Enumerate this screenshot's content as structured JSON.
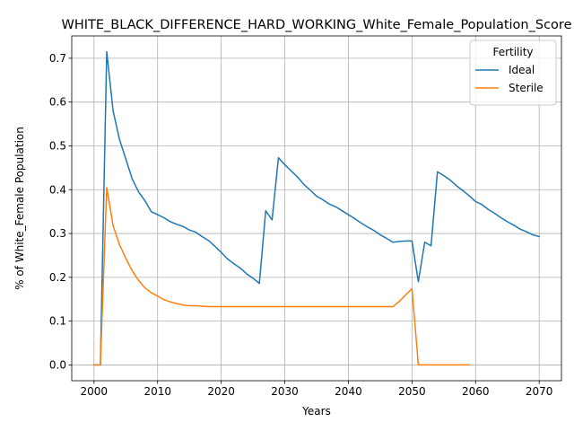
{
  "chart_data": {
    "type": "line",
    "title": "WHITE_BLACK_DIFFERENCE_HARD_WORKING_White_Female_Population_Score",
    "xlabel": "Years",
    "ylabel": "% of White_Female Population",
    "xlim": [
      1996.5,
      2073.5
    ],
    "ylim": [
      -0.036,
      0.751
    ],
    "xticks": [
      2000,
      2010,
      2020,
      2030,
      2040,
      2050,
      2060,
      2070
    ],
    "yticks": [
      0.0,
      0.1,
      0.2,
      0.3,
      0.4,
      0.5,
      0.6,
      0.7
    ],
    "ytick_labels": [
      "0.0",
      "0.1",
      "0.2",
      "0.3",
      "0.4",
      "0.5",
      "0.6",
      "0.7"
    ],
    "grid": true,
    "legend": {
      "title": "Fertility",
      "placement": "top-right"
    },
    "series": [
      {
        "name": "Ideal",
        "color": "#1f77b4",
        "x": [
          2000,
          2001,
          2002,
          2003,
          2004,
          2005,
          2006,
          2007,
          2008,
          2009,
          2010,
          2011,
          2012,
          2013,
          2014,
          2015,
          2016,
          2017,
          2018,
          2019,
          2020,
          2021,
          2022,
          2023,
          2024,
          2025,
          2026,
          2027,
          2028,
          2029,
          2030,
          2031,
          2032,
          2033,
          2034,
          2035,
          2036,
          2037,
          2038,
          2039,
          2040,
          2041,
          2042,
          2043,
          2044,
          2045,
          2046,
          2047,
          2048,
          2049,
          2050,
          2051,
          2052,
          2053,
          2054,
          2055,
          2056,
          2057,
          2058,
          2059,
          2060,
          2061,
          2062,
          2063,
          2064,
          2065,
          2066,
          2067,
          2068,
          2069,
          2070
        ],
        "y": [
          0.0,
          0.0,
          0.715,
          0.58,
          0.515,
          0.47,
          0.425,
          0.395,
          0.375,
          0.35,
          0.343,
          0.336,
          0.327,
          0.321,
          0.316,
          0.308,
          0.303,
          0.293,
          0.284,
          0.271,
          0.257,
          0.242,
          0.231,
          0.221,
          0.208,
          0.198,
          0.186,
          0.352,
          0.331,
          0.473,
          0.457,
          0.443,
          0.429,
          0.412,
          0.399,
          0.385,
          0.377,
          0.367,
          0.361,
          0.352,
          0.343,
          0.334,
          0.324,
          0.315,
          0.307,
          0.297,
          0.289,
          0.28,
          0.282,
          0.283,
          0.283,
          0.19,
          0.28,
          0.272,
          0.441,
          0.432,
          0.422,
          0.409,
          0.398,
          0.386,
          0.373,
          0.366,
          0.355,
          0.346,
          0.336,
          0.327,
          0.319,
          0.31,
          0.304,
          0.297,
          0.293
        ]
      },
      {
        "name": "Sterile",
        "color": "#ff7f0e",
        "x": [
          2000,
          2001,
          2002,
          2003,
          2004,
          2005,
          2006,
          2007,
          2008,
          2009,
          2010,
          2011,
          2012,
          2013,
          2014,
          2015,
          2016,
          2017,
          2018,
          2019,
          2020,
          2021,
          2022,
          2023,
          2024,
          2025,
          2026,
          2027,
          2028,
          2029,
          2030,
          2031,
          2032,
          2033,
          2034,
          2035,
          2036,
          2037,
          2038,
          2039,
          2040,
          2041,
          2042,
          2043,
          2044,
          2045,
          2046,
          2047,
          2048,
          2049,
          2050,
          2051,
          2052,
          2053,
          2054,
          2055,
          2056,
          2057,
          2058,
          2059
        ],
        "y": [
          0.0,
          0.0,
          0.405,
          0.318,
          0.275,
          0.243,
          0.215,
          0.193,
          0.176,
          0.165,
          0.157,
          0.149,
          0.144,
          0.14,
          0.137,
          0.135,
          0.135,
          0.134,
          0.133,
          0.133,
          0.133,
          0.133,
          0.133,
          0.133,
          0.133,
          0.133,
          0.133,
          0.133,
          0.133,
          0.133,
          0.133,
          0.133,
          0.133,
          0.133,
          0.133,
          0.133,
          0.133,
          0.133,
          0.133,
          0.133,
          0.133,
          0.133,
          0.133,
          0.133,
          0.133,
          0.133,
          0.133,
          0.133,
          0.145,
          0.16,
          0.174,
          0.0,
          0.0,
          0.0,
          0.0,
          0.0,
          0.0,
          0.0,
          0.0,
          0.0
        ]
      }
    ]
  }
}
